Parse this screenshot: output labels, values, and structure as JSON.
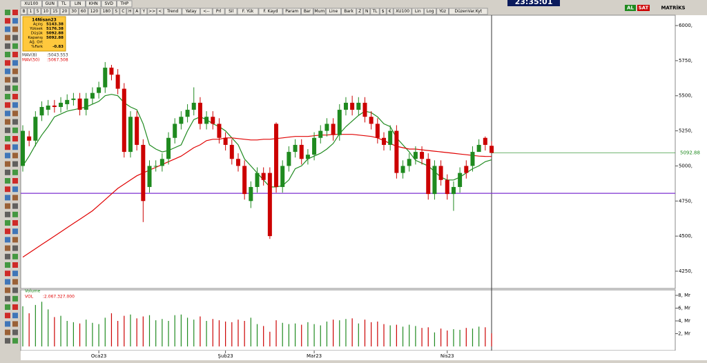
{
  "ui": {
    "top_row": [
      "XU100",
      "GUN",
      "TL",
      "LIN",
      "KHN",
      "SVD",
      "THP"
    ],
    "toolbar": [
      "B",
      "1",
      "5",
      "10",
      "15",
      "20",
      "30",
      "60",
      "120",
      "180",
      "S",
      "C",
      "H",
      "A",
      "Y",
      ">>",
      "<",
      "Trend",
      "Yatay",
      "<--",
      "Prl",
      "Sil",
      "F. Yük",
      "F. Kayd",
      "Param",
      "Bar",
      "Mum",
      "Line",
      "Bark",
      "Z",
      "N",
      "TL",
      "$",
      "€",
      "XU100",
      "Lin",
      "Log",
      "Yüz",
      "DüzenVar.Kyt"
    ],
    "clock": "23:35:01",
    "buy": "AL",
    "sell": "SAT",
    "brand": "MATRİKS"
  },
  "info_box": {
    "title": "14Nisan23",
    "rows": [
      {
        "label": "Açılış",
        "value": "5143.38"
      },
      {
        "label": "Yüksek",
        "value": "5176.38"
      },
      {
        "label": "Düşük",
        "value": "5092.88"
      },
      {
        "label": "Kapanış",
        "value": "5092.88"
      },
      {
        "label": "Ağ. Ort"
      },
      {
        "label": "%Fark",
        "value": "-0.83"
      }
    ]
  },
  "chart_data": {
    "type": "candlestick",
    "categories": [
      null,
      null,
      null,
      null,
      null,
      null,
      null,
      null,
      null,
      null,
      null,
      null,
      "Oca23",
      null,
      null,
      null,
      null,
      null,
      null,
      null,
      null,
      null,
      null,
      null,
      null,
      null,
      null,
      null,
      null,
      null,
      null,
      null,
      "Şub23",
      null,
      null,
      null,
      null,
      null,
      null,
      null,
      null,
      null,
      null,
      null,
      null,
      null,
      "Mar23",
      null,
      null,
      null,
      null,
      null,
      null,
      null,
      null,
      null,
      null,
      null,
      null,
      null,
      null,
      null,
      null,
      null,
      null,
      null,
      null,
      "Nis23",
      null,
      null,
      null,
      null,
      null,
      null,
      null
    ],
    "open": [
      5000,
      5210,
      5180,
      5360,
      5400,
      5430,
      5420,
      5440,
      5470,
      5480,
      5400,
      5480,
      5520,
      5560,
      5700,
      5650,
      5550,
      5100,
      5350,
      5150,
      4850,
      5000,
      5000,
      5050,
      5200,
      5300,
      5350,
      5400,
      5450,
      5300,
      5350,
      5300,
      5200,
      5150,
      5050,
      5000,
      4750,
      4850,
      4950,
      4950,
      5300,
      4850,
      5000,
      5100,
      5150,
      5050,
      5080,
      5200,
      5250,
      5300,
      5220,
      5400,
      5450,
      5400,
      5450,
      5350,
      5300,
      5200,
      5150,
      5250,
      4950,
      5000,
      5050,
      5100,
      5050,
      4800,
      5000,
      4900,
      4800,
      4850,
      5000,
      5000,
      5100,
      5200,
      5143.38
    ],
    "high": [
      5290,
      5250,
      5390,
      5460,
      5470,
      5470,
      5490,
      5510,
      5520,
      5520,
      5520,
      5560,
      5600,
      5740,
      5720,
      5690,
      5590,
      5390,
      5390,
      5190,
      5040,
      5040,
      5090,
      5240,
      5340,
      5390,
      5440,
      5560,
      5490,
      5390,
      5390,
      5340,
      5240,
      5190,
      5090,
      5040,
      4890,
      4990,
      4990,
      4990,
      5310,
      5040,
      5140,
      5190,
      5190,
      5120,
      5240,
      5290,
      5340,
      5340,
      5440,
      5490,
      5500,
      5490,
      5490,
      5390,
      5340,
      5240,
      5290,
      5290,
      5040,
      5090,
      5140,
      5140,
      5090,
      5040,
      5040,
      4940,
      4890,
      4990,
      5040,
      5140,
      5190,
      5210,
      5176.38
    ],
    "low": [
      4960,
      5140,
      5140,
      5320,
      5360,
      5380,
      5380,
      5400,
      5430,
      5360,
      5360,
      5440,
      5480,
      5520,
      5610,
      5510,
      5060,
      5060,
      5110,
      4600,
      4810,
      4960,
      4960,
      5010,
      5160,
      5260,
      5310,
      5360,
      5260,
      5260,
      5260,
      5160,
      5110,
      5010,
      4960,
      4760,
      4700,
      4810,
      4860,
      4480,
      4810,
      4810,
      4960,
      5060,
      5010,
      5010,
      5040,
      5160,
      5210,
      5180,
      5180,
      5360,
      5360,
      5360,
      5310,
      5260,
      5160,
      5110,
      5110,
      4910,
      4910,
      4960,
      5010,
      5010,
      4760,
      4760,
      4860,
      4760,
      4680,
      4810,
      4910,
      4960,
      5110,
      5110,
      5092.88
    ],
    "close": [
      5250,
      5180,
      5350,
      5420,
      5430,
      5420,
      5450,
      5470,
      5480,
      5400,
      5480,
      5520,
      5560,
      5700,
      5650,
      5550,
      5100,
      5350,
      5150,
      4750,
      5000,
      5000,
      5050,
      5200,
      5300,
      5350,
      5400,
      5450,
      5300,
      5350,
      5300,
      5200,
      5150,
      5050,
      5000,
      4800,
      4850,
      4950,
      4900,
      4500,
      4850,
      5000,
      5100,
      5150,
      5050,
      5080,
      5200,
      5250,
      5300,
      5220,
      5400,
      5450,
      5400,
      5450,
      5350,
      5300,
      5200,
      5150,
      5250,
      4950,
      5000,
      5050,
      5100,
      5050,
      4800,
      5000,
      4900,
      4800,
      4850,
      4950,
      4950,
      5100,
      5150,
      5150,
      5092.88
    ],
    "up_color": "#1f8a1f",
    "down_color": "#cc0000",
    "ylim": [
      4127,
      6074
    ],
    "yticks": [
      {
        "value": 4250,
        "label": "4250,"
      },
      {
        "value": 4500,
        "label": "4500,"
      },
      {
        "value": 4750,
        "label": "4750,"
      },
      {
        "value": 5000,
        "label": "5000,"
      },
      {
        "value": 5250,
        "label": "5250,"
      },
      {
        "value": 5500,
        "label": "5500,"
      },
      {
        "value": 5750,
        "label": "5750,"
      },
      {
        "value": 6000,
        "label": "6000,"
      }
    ],
    "last_price": 5092.88,
    "support_line": {
      "value": 4805,
      "color": "#7b2fd0"
    },
    "overlays": [
      {
        "name": "MAV(8)",
        "legend_value": ":5043.553",
        "color": "#1f8a1f",
        "values": [
          5000,
          5070,
          5150,
          5220,
          5280,
          5350,
          5370,
          5390,
          5400,
          5410,
          5420,
          5440,
          5460,
          5500,
          5510,
          5500,
          5450,
          5420,
          5400,
          5300,
          5150,
          5120,
          5100,
          5110,
          5130,
          5150,
          5250,
          5330,
          5350,
          5330,
          5300,
          5280,
          5250,
          5200,
          5150,
          5050,
          5000,
          4950,
          4900,
          4850,
          4850,
          4860,
          4900,
          4980,
          5000,
          5050,
          5070,
          5090,
          5120,
          5160,
          5230,
          5280,
          5320,
          5360,
          5390,
          5380,
          5350,
          5300,
          5280,
          5200,
          5150,
          5100,
          5040,
          5020,
          5000,
          4960,
          4920,
          4900,
          4900,
          4920,
          4950,
          4980,
          5000,
          5030,
          5043.553
        ]
      },
      {
        "name": "MAV(50)",
        "legend_value": ":5067.508",
        "color": "#e00000",
        "values": [
          4350,
          4380,
          4410,
          4440,
          4470,
          4500,
          4530,
          4560,
          4590,
          4620,
          4650,
          4680,
          4720,
          4760,
          4800,
          4840,
          4870,
          4900,
          4930,
          4950,
          4970,
          4990,
          5010,
          5030,
          5050,
          5070,
          5100,
          5130,
          5150,
          5180,
          5190,
          5190,
          5200,
          5200,
          5195,
          5190,
          5185,
          5185,
          5190,
          5190,
          5195,
          5200,
          5205,
          5210,
          5210,
          5210,
          5215,
          5220,
          5220,
          5225,
          5225,
          5225,
          5225,
          5220,
          5215,
          5210,
          5200,
          5180,
          5160,
          5140,
          5130,
          5120,
          5120,
          5115,
          5110,
          5105,
          5100,
          5095,
          5090,
          5085,
          5080,
          5075,
          5070,
          5068,
          5067.508
        ]
      }
    ],
    "volume": {
      "name": "Volume",
      "label": "VOL",
      "legend_value": ":2.067.327.000",
      "values": [
        6.3,
        5.2,
        6.5,
        7.0,
        5.8,
        4.6,
        4.8,
        4.0,
        3.8,
        3.6,
        4.2,
        3.7,
        3.5,
        4.5,
        5.2,
        4.0,
        4.8,
        5.0,
        4.4,
        4.7,
        4.9,
        4.1,
        4.3,
        4.0,
        4.9,
        5.0,
        4.5,
        4.2,
        4.7,
        4.0,
        4.3,
        4.1,
        3.9,
        3.8,
        4.2,
        4.0,
        4.5,
        3.5,
        3.2,
        2.3,
        4.1,
        3.7,
        3.5,
        3.6,
        3.4,
        3.8,
        3.5,
        3.3,
        3.9,
        4.2,
        4.1,
        4.3,
        4.4,
        3.6,
        4.2,
        3.8,
        3.9,
        3.5,
        3.3,
        3.4,
        3.1,
        3.4,
        3.2,
        2.9,
        3.0,
        2.2,
        2.8,
        2.5,
        2.7,
        2.6,
        2.9,
        2.8,
        3.1,
        3.0,
        2.067327
      ],
      "ylim": [
        0,
        8.65
      ],
      "yticks": [
        {
          "value": 2,
          "label": "2, Mr"
        },
        {
          "value": 4,
          "label": "4, Mr"
        },
        {
          "value": 6,
          "label": "6, Mr"
        },
        {
          "value": 8,
          "label": "8, Mr"
        }
      ]
    }
  }
}
